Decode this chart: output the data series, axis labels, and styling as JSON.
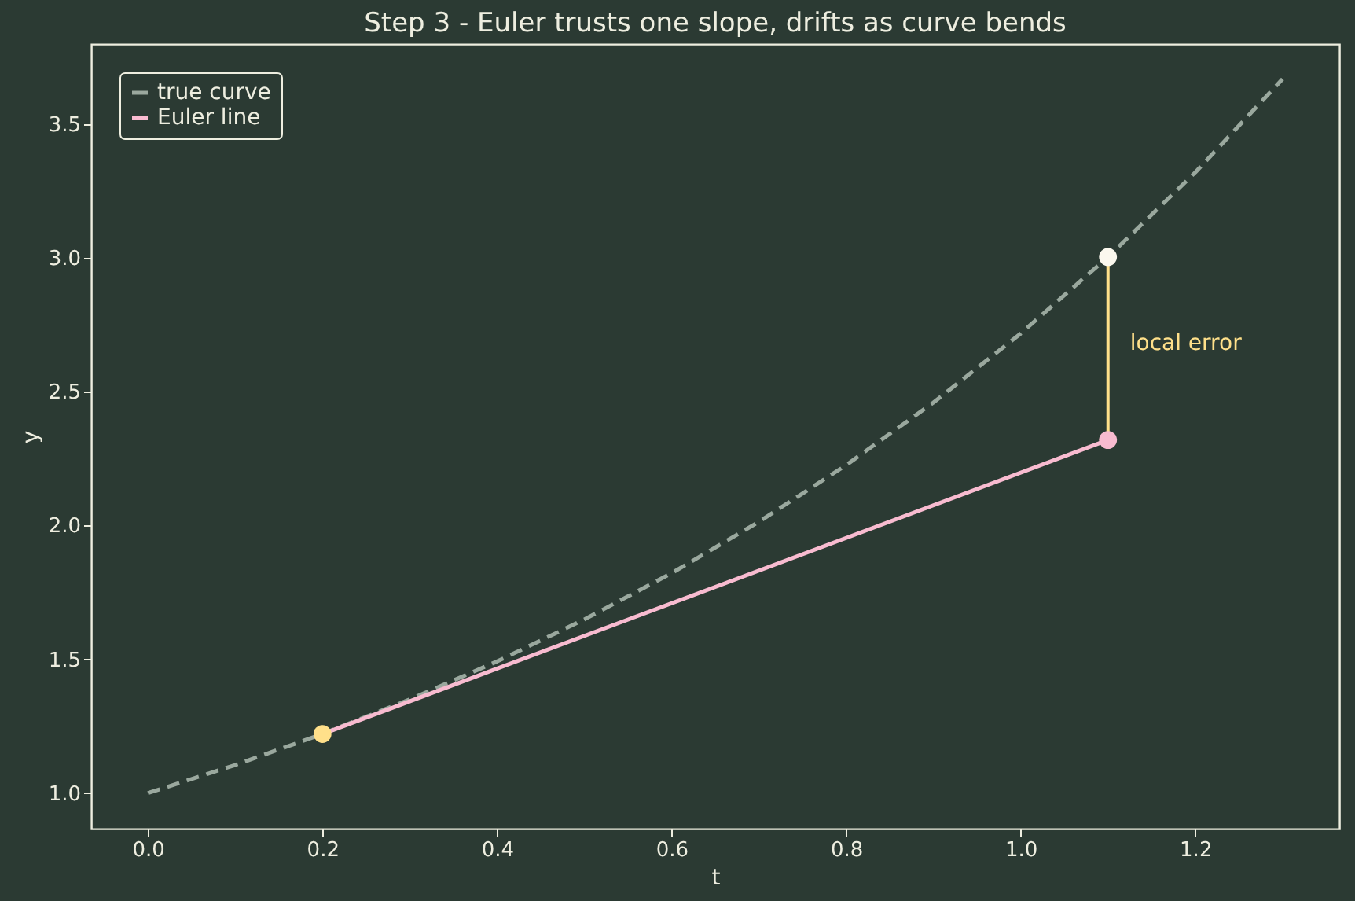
{
  "chart_data": {
    "type": "line",
    "title": "Step 3 - Euler trusts one slope, drifts as curve bends",
    "xlabel": "t",
    "ylabel": "y",
    "xlim": [
      -0.065,
      1.365
    ],
    "xticks": [
      {
        "value": 0,
        "label": "0.0"
      },
      0.2,
      0.4,
      0.6,
      0.8,
      {
        "value": 1,
        "label": "1.0"
      },
      1.2
    ],
    "ylim": [
      0.867,
      3.8
    ],
    "yticks": [
      {
        "value": 1,
        "label": "1.0"
      },
      1.5,
      {
        "value": 2,
        "label": "2.0"
      },
      2.5,
      {
        "value": 3,
        "label": "3.0"
      },
      3.5
    ],
    "grid": false,
    "legend": "top left",
    "series": [
      {
        "name": "true curve",
        "color": "#9aa89e",
        "line_style": "dashed",
        "x": [
          0.0,
          0.1,
          0.2,
          0.3,
          0.4,
          0.5,
          0.6,
          0.7,
          0.8,
          0.9,
          1.0,
          1.1,
          1.2,
          1.3
        ],
        "values": [
          1.0,
          1.105,
          1.221,
          1.35,
          1.492,
          1.649,
          1.822,
          2.014,
          2.226,
          2.46,
          2.718,
          3.004,
          3.32,
          3.669
        ]
      },
      {
        "name": "Euler line",
        "color": "#f8bbd0",
        "line_style": "solid",
        "x": [
          0.2,
          1.1
        ],
        "values": [
          1.221,
          2.32
        ]
      },
      {
        "color": "#ffe08a",
        "line_style": "solid",
        "x": [
          1.1,
          1.1
        ],
        "values": [
          2.32,
          3.004
        ]
      },
      {
        "type": "scatter",
        "marker": "circle",
        "colors": [
          "#ffe08a",
          "#f8bbd0",
          "#fbf8ee"
        ],
        "x": [
          0.2,
          1.1,
          1.1
        ],
        "values": [
          1.221,
          2.32,
          3.004
        ]
      }
    ],
    "annotations": [
      {
        "text": "local error",
        "x": 1.1,
        "y": 2.68
      }
    ]
  }
}
